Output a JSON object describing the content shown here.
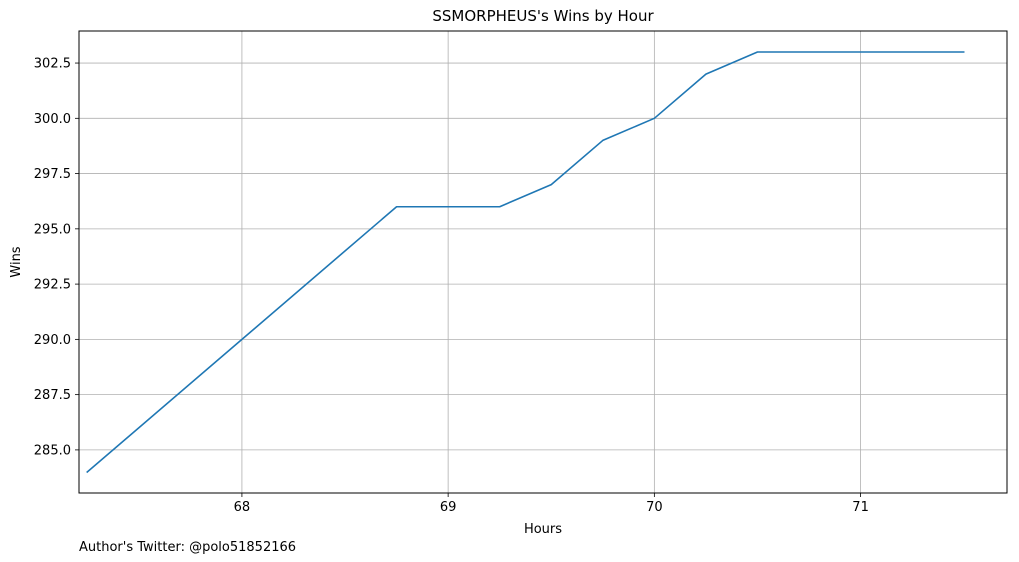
{
  "chart_data": {
    "type": "line",
    "title": "SSMORPHEUS's Wins by Hour",
    "xlabel": "Hours",
    "ylabel": "Wins",
    "xlim": [
      67.21,
      71.71
    ],
    "ylim": [
      283.05,
      303.95
    ],
    "xticks": [
      68,
      69,
      70,
      71
    ],
    "xtick_labels": [
      "68",
      "69",
      "70",
      "71"
    ],
    "yticks": [
      285.0,
      287.5,
      290.0,
      292.5,
      295.0,
      297.5,
      300.0,
      302.5
    ],
    "ytick_labels": [
      "285.0",
      "287.5",
      "290.0",
      "292.5",
      "295.0",
      "297.5",
      "300.0",
      "302.5"
    ],
    "grid": true,
    "series": [
      {
        "color": "#1f77b4",
        "x": [
          67.25,
          68.0,
          68.75,
          69.0,
          69.25,
          69.5,
          69.75,
          70.0,
          70.25,
          70.5,
          70.75,
          71.0,
          71.25,
          71.5
        ],
        "y": [
          284,
          290,
          296,
          296,
          296,
          297,
          299,
          300,
          302,
          303,
          303,
          303,
          303,
          303
        ]
      }
    ]
  },
  "footer": {
    "author_text": "Author's Twitter: @polo51852166"
  }
}
